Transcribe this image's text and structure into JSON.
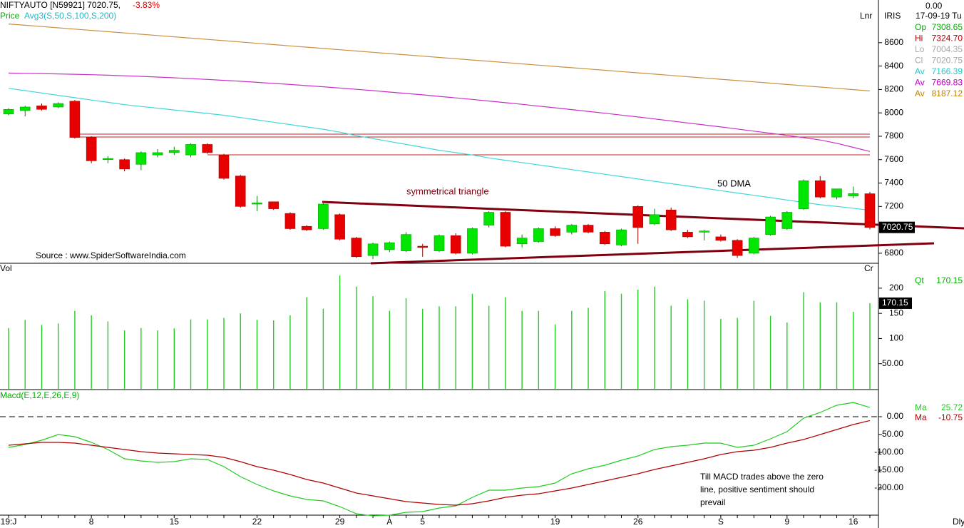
{
  "header": {
    "symbol": "NIFTYAUTO [N59921] 7020.75,",
    "change": "-3.83%",
    "price_label": "Price",
    "indicator": "Avg3(S,50,S,100,S,200)",
    "scale_mode": "Lnr",
    "tool": "IRIS",
    "period": "Dly"
  },
  "info_panel": {
    "value": "0.00",
    "date": "17-09-19 Tu",
    "rows": [
      {
        "label": "Op",
        "value": "7308.65",
        "color": "#00b000"
      },
      {
        "label": "Hi",
        "value": "7324.70",
        "color": "#b00000"
      },
      {
        "label": "Lo",
        "value": "7004.35",
        "color": "#a8a8a8"
      },
      {
        "label": "Cl",
        "value": "7020.75",
        "color": "#a8a8a8"
      },
      {
        "label": "Av",
        "value": "7166.39",
        "color": "#20c8c8"
      },
      {
        "label": "Av",
        "value": "7669.83",
        "color": "#c000c0"
      },
      {
        "label": "Av",
        "value": "8187.12",
        "color": "#c08000"
      }
    ]
  },
  "chart_data": [
    {
      "type": "candlestick",
      "categories": [
        "19:J",
        null,
        null,
        null,
        null,
        "8",
        null,
        null,
        null,
        null,
        "15",
        null,
        null,
        null,
        null,
        "22",
        null,
        null,
        null,
        null,
        "29",
        null,
        null,
        "A",
        null,
        "5",
        null,
        null,
        null,
        null,
        null,
        null,
        null,
        "19",
        null,
        null,
        null,
        null,
        "26",
        null,
        null,
        null,
        null,
        "S",
        null,
        null,
        null,
        "9",
        null,
        null,
        null,
        "16",
        null
      ],
      "open": [
        7990,
        8020,
        8060,
        8050,
        8100,
        7790,
        7600,
        7600,
        7560,
        7640,
        7660,
        7640,
        7730,
        7640,
        7460,
        7220,
        7240,
        7140,
        7030,
        7010,
        7130,
        6930,
        6780,
        6830,
        6820,
        6860,
        6820,
        6950,
        6800,
        7040,
        7150,
        6880,
        6900,
        7010,
        6980,
        7040,
        6980,
        6870,
        7200,
        7050,
        7170,
        6980,
        6980,
        6940,
        6910,
        6800,
        6960,
        7010,
        7180,
        7420,
        7280,
        7290,
        7308.65
      ],
      "high": [
        8040,
        8060,
        8080,
        8090,
        8110,
        7800,
        7630,
        7610,
        7670,
        7690,
        7710,
        7740,
        7740,
        7650,
        7470,
        7290,
        7240,
        7150,
        7040,
        7240,
        7140,
        6940,
        6890,
        6900,
        6980,
        6880,
        6960,
        6970,
        7020,
        7160,
        7160,
        6960,
        7020,
        7030,
        7050,
        7050,
        6990,
        7010,
        7210,
        7180,
        7190,
        7000,
        7000,
        6960,
        6920,
        6940,
        7120,
        7160,
        7430,
        7460,
        7350,
        7370,
        7324.7
      ],
      "low": [
        7980,
        7970,
        8020,
        8040,
        7780,
        7570,
        7570,
        7500,
        7510,
        7620,
        7640,
        7620,
        7650,
        7430,
        7190,
        7160,
        7170,
        7000,
        6990,
        7000,
        6910,
        6760,
        6750,
        6810,
        6810,
        6770,
        6810,
        6790,
        6790,
        7020,
        6850,
        6850,
        6890,
        6940,
        6960,
        6970,
        6870,
        6860,
        6880,
        7040,
        6990,
        6930,
        6910,
        6900,
        6760,
        6790,
        6950,
        7000,
        7170,
        7270,
        7260,
        7270,
        7004.35
      ],
      "close": [
        8030,
        8050,
        8030,
        8080,
        7790,
        7590,
        7610,
        7520,
        7660,
        7660,
        7680,
        7730,
        7660,
        7440,
        7200,
        7230,
        7180,
        7010,
        7000,
        7220,
        6920,
        6770,
        6880,
        6890,
        6960,
        6850,
        6950,
        6800,
        7010,
        7150,
        6860,
        6930,
        7010,
        6950,
        7040,
        6980,
        6880,
        7000,
        7020,
        7130,
        7000,
        6940,
        6990,
        6910,
        6780,
        6930,
        7110,
        7150,
        7420,
        7280,
        7350,
        7310,
        7020.75
      ],
      "up_color": "#00e600",
      "down_color": "#e60000",
      "series": [
        {
          "color": "#40d8d8",
          "values": [
            8210,
            8190,
            8170,
            8150,
            8130,
            8110,
            8090,
            8070,
            8055,
            8040,
            8025,
            8010,
            7995,
            7980,
            7960,
            7940,
            7920,
            7900,
            7880,
            7860,
            7835,
            7805,
            7780,
            7755,
            7730,
            7705,
            7680,
            7660,
            7640,
            7615,
            7595,
            7575,
            7555,
            7535,
            7515,
            7495,
            7475,
            7455,
            7435,
            7415,
            7395,
            7375,
            7355,
            7335,
            7315,
            7295,
            7275,
            7255,
            7235,
            7215,
            7200,
            7185,
            7166.39
          ]
        },
        {
          "color": "#c830c8",
          "values": [
            8340,
            8338,
            8336,
            8333,
            8330,
            8326,
            8322,
            8317,
            8312,
            8306,
            8300,
            8293,
            8286,
            8278,
            8270,
            8261,
            8252,
            8243,
            8233,
            8223,
            8212,
            8201,
            8190,
            8178,
            8166,
            8154,
            8141,
            8128,
            8115,
            8101,
            8087,
            8073,
            8058,
            8043,
            8028,
            8013,
            7997,
            7981,
            7965,
            7948,
            7931,
            7914,
            7897,
            7880,
            7862,
            7844,
            7826,
            7807,
            7788,
            7768,
            7740,
            7705,
            7669.83
          ]
        },
        {
          "color": "#c89040",
          "values": [
            8760,
            8749,
            8738,
            8727,
            8716,
            8705,
            8694,
            8683,
            8672,
            8661,
            8650,
            8639,
            8628,
            8617,
            8606,
            8595,
            8584,
            8573,
            8562,
            8551,
            8540,
            8529,
            8518,
            8507,
            8496,
            8485,
            8474,
            8463,
            8452,
            8441,
            8430,
            8419,
            8408,
            8397,
            8386,
            8375,
            8364,
            8353,
            8342,
            8331,
            8320,
            8309,
            8298,
            8287,
            8276,
            8265,
            8254,
            8243,
            8232,
            8221,
            8210,
            8199,
            8187.12
          ]
        }
      ],
      "ylim": [
        6720,
        8965
      ],
      "yticks": [
        8600,
        8400,
        8200,
        8000,
        7800,
        7600,
        7400,
        7200,
        6800
      ],
      "annotations": [
        "symmetrical triangle",
        "50 DMA"
      ],
      "source": "Source : www.SpiderSoftwareIndia.com"
    },
    {
      "type": "bar",
      "title": "Vol",
      "axis_label": "Cr",
      "legend_label": "Qt",
      "color": "#22cc22",
      "values": [
        121,
        137,
        127,
        130,
        155,
        146,
        134,
        116,
        121,
        116,
        120,
        138,
        138,
        141,
        150,
        137,
        136,
        146,
        182,
        159,
        225,
        203,
        184,
        155,
        180,
        159,
        164,
        164,
        189,
        165,
        182,
        155,
        155,
        128,
        155,
        161,
        194,
        189,
        197,
        203,
        165,
        178,
        175,
        139,
        141,
        175,
        145,
        132,
        192,
        172,
        172,
        153,
        170.15
      ],
      "ylim": [
        0,
        248
      ],
      "yticks": [
        200,
        150,
        100,
        {
          "value": 50,
          "label": "50.00"
        }
      ]
    },
    {
      "type": "line",
      "title": "Macd(E,12,E,26,E,9)",
      "zero_line": true,
      "series": [
        {
          "name": "Ma",
          "color": "#22cc22",
          "values": [
            -86,
            -78,
            -66,
            -50,
            -56,
            -72,
            -92,
            -118,
            -124,
            -128,
            -126,
            -118,
            -120,
            -140,
            -168,
            -190,
            -208,
            -222,
            -232,
            -236,
            -252,
            -272,
            -278,
            -276,
            -268,
            -266,
            -256,
            -250,
            -226,
            -206,
            -206,
            -200,
            -196,
            -186,
            -160,
            -146,
            -136,
            -122,
            -110,
            -92,
            -84,
            -80,
            -74,
            -74,
            -86,
            -80,
            -62,
            -42,
            -4,
            12,
            32,
            40,
            25.72
          ]
        },
        {
          "name": "Ma",
          "color": "#b00000",
          "values": [
            -80,
            -76,
            -72,
            -72,
            -74,
            -80,
            -86,
            -92,
            -98,
            -102,
            -104,
            -106,
            -108,
            -114,
            -126,
            -140,
            -150,
            -162,
            -176,
            -186,
            -200,
            -214,
            -222,
            -230,
            -238,
            -242,
            -246,
            -248,
            -244,
            -236,
            -226,
            -220,
            -216,
            -208,
            -200,
            -190,
            -180,
            -170,
            -160,
            -148,
            -138,
            -128,
            -118,
            -106,
            -98,
            -94,
            -86,
            -74,
            -64,
            -50,
            -36,
            -22,
            -10.75
          ]
        }
      ],
      "ylim": [
        -288,
        72
      ],
      "yticks": [
        {
          "value": 0,
          "label": "0.00"
        },
        {
          "value": -50,
          "label": "-50.00"
        },
        {
          "value": -100,
          "label": "-100.00"
        },
        {
          "value": -150,
          "label": "-150.00"
        },
        {
          "value": -200,
          "label": "-200.00"
        }
      ],
      "note": [
        "Till MACD trades above the zero",
        "line, positive sentiment should",
        "prevail"
      ]
    }
  ]
}
